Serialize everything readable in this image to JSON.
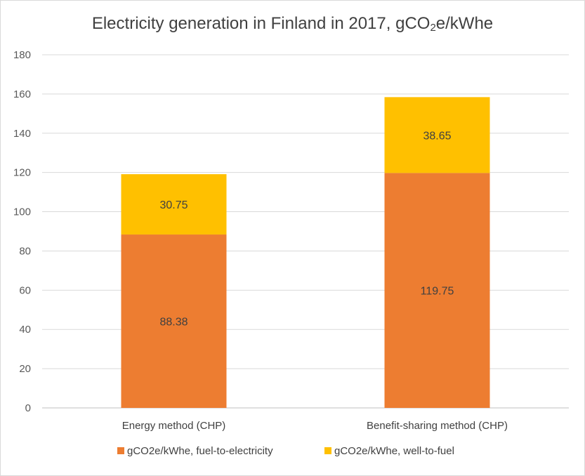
{
  "chart_data": {
    "type": "bar",
    "stacked": true,
    "title_main": "Electricity generation in Finland in 2017, gCO",
    "title_sub": "2",
    "title_tail": "e/kWhe",
    "categories": [
      "Energy method (CHP)",
      "Benefit-sharing method (CHP)"
    ],
    "series": [
      {
        "name": "gCO2e/kWhe, fuel-to-electricity",
        "color": "#ed7d31",
        "values": [
          88.38,
          119.75
        ],
        "labels": [
          "88.38",
          "119.75"
        ]
      },
      {
        "name": "gCO2e/kWhe, well-to-fuel",
        "color": "#ffc000",
        "values": [
          30.75,
          38.65
        ],
        "labels": [
          "30.75",
          "38.65"
        ]
      }
    ],
    "ylim": [
      0,
      180
    ],
    "yticks": [
      0,
      20,
      40,
      60,
      80,
      100,
      120,
      140,
      160,
      180
    ],
    "grid": true,
    "legend": "bottom"
  }
}
